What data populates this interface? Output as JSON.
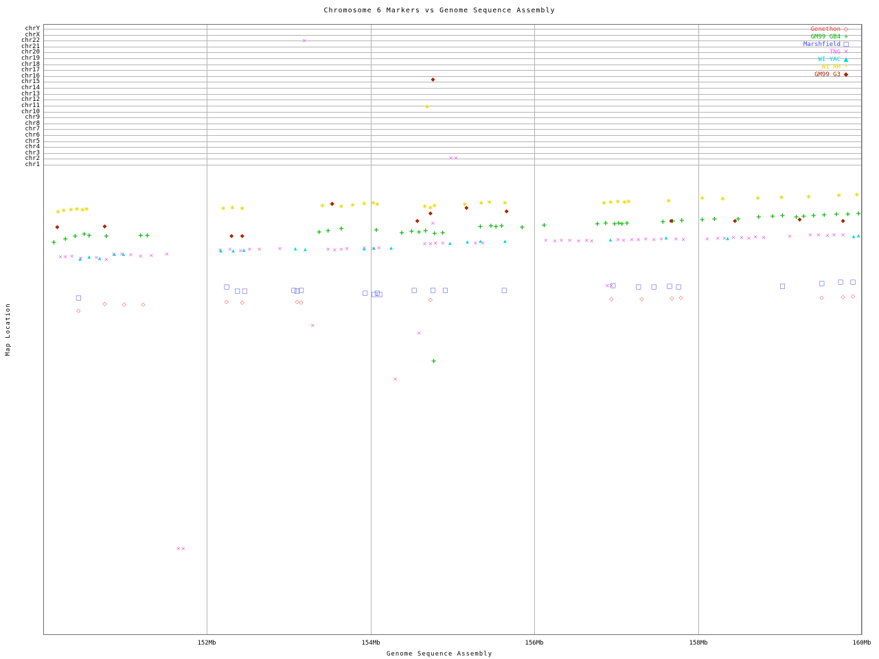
{
  "title": "Chromosome 6 Markers vs Genome Sequence Assembly",
  "x_axis": {
    "label": "Genome Sequence Assembly",
    "ticks": [
      {
        "label": "152Mb",
        "value": 152
      },
      {
        "label": "154Mb",
        "value": 154
      },
      {
        "label": "156Mb",
        "value": 156
      },
      {
        "label": "158Mb",
        "value": 158
      },
      {
        "label": "160Mb",
        "value": 160
      }
    ]
  },
  "y_axis": {
    "label": "Map Location",
    "chromosome_rows": [
      "chrY",
      "chrX",
      "chr22",
      "chr21",
      "chr20",
      "chr19",
      "chr18",
      "chr17",
      "chr16",
      "chr15",
      "chr14",
      "chr13",
      "chr12",
      "chr11",
      "chr10",
      "chr9",
      "chr8",
      "chr7",
      "chr6",
      "chr5",
      "chr4",
      "chr3",
      "chr2",
      "chr1"
    ]
  },
  "chart_data": {
    "type": "scatter",
    "title": "Chromosome 6 Markers vs Genome Sequence Assembly",
    "xlabel": "Genome Sequence Assembly",
    "ylabel": "Map Location",
    "x_units": "Mb",
    "x_range": [
      150,
      160
    ],
    "grid": true,
    "legend_position": "top-right",
    "y_axis_note": "Upper band rows are chromosome lanes chrY (top) to chr1 (bottom); lower region is map location along chr6 with no numeric scale printed. y values below are vertical screen positions (px).",
    "series": [
      {
        "name": "Genethon",
        "color": "#ff3333",
        "marker": "diamond-open",
        "points": [
          [
            150.75,
            443
          ],
          [
            150.99,
            444
          ],
          [
            151.22,
            444
          ],
          [
            150.43,
            453
          ],
          [
            152.24,
            440
          ],
          [
            152.43,
            441
          ],
          [
            153.1,
            440
          ],
          [
            153.15,
            441
          ],
          [
            154.73,
            437
          ],
          [
            156.94,
            436
          ],
          [
            157.31,
            436
          ],
          [
            157.68,
            435
          ],
          [
            157.79,
            434
          ],
          [
            159.51,
            434
          ],
          [
            159.77,
            433
          ],
          [
            159.89,
            432
          ]
        ]
      },
      {
        "name": "GM99 GB4",
        "color": "#00b400",
        "marker": "plus",
        "points": [
          [
            150.13,
            354
          ],
          [
            150.27,
            349
          ],
          [
            150.39,
            345
          ],
          [
            150.5,
            342
          ],
          [
            150.56,
            344
          ],
          [
            150.77,
            345
          ],
          [
            151.19,
            344
          ],
          [
            151.27,
            344
          ],
          [
            153.37,
            339
          ],
          [
            153.48,
            337
          ],
          [
            153.64,
            334
          ],
          [
            154.07,
            336
          ],
          [
            154.38,
            340
          ],
          [
            154.5,
            338
          ],
          [
            154.59,
            339
          ],
          [
            154.67,
            337
          ],
          [
            154.78,
            341
          ],
          [
            154.88,
            340
          ],
          [
            155.34,
            331
          ],
          [
            155.47,
            330
          ],
          [
            155.53,
            331
          ],
          [
            155.6,
            330
          ],
          [
            155.85,
            332
          ],
          [
            156.12,
            329
          ],
          [
            156.77,
            327
          ],
          [
            156.87,
            326
          ],
          [
            156.98,
            327
          ],
          [
            157.03,
            326
          ],
          [
            157.07,
            327
          ],
          [
            157.13,
            326
          ],
          [
            157.57,
            324
          ],
          [
            157.69,
            323
          ],
          [
            157.8,
            322
          ],
          [
            158.05,
            321
          ],
          [
            158.2,
            320
          ],
          [
            158.49,
            320
          ],
          [
            158.74,
            317
          ],
          [
            158.91,
            316
          ],
          [
            159.03,
            315
          ],
          [
            159.2,
            317
          ],
          [
            159.29,
            316
          ],
          [
            159.41,
            315
          ],
          [
            159.54,
            314
          ],
          [
            159.69,
            313
          ],
          [
            159.83,
            313
          ],
          [
            159.96,
            312
          ],
          [
            154.77,
            527
          ]
        ]
      },
      {
        "name": "Marshfield",
        "color": "#3f3fff",
        "marker": "square-open",
        "points": [
          [
            150.43,
            435
          ],
          [
            152.24,
            419
          ],
          [
            152.37,
            425
          ],
          [
            152.46,
            425
          ],
          [
            153.06,
            424
          ],
          [
            153.1,
            425
          ],
          [
            153.15,
            424
          ],
          [
            153.93,
            428
          ],
          [
            154.04,
            430
          ],
          [
            154.08,
            428
          ],
          [
            154.11,
            430
          ],
          [
            154.53,
            424
          ],
          [
            154.76,
            424
          ],
          [
            154.91,
            424
          ],
          [
            155.63,
            424
          ],
          [
            156.96,
            417
          ],
          [
            157.27,
            419
          ],
          [
            157.46,
            419
          ],
          [
            157.65,
            418
          ],
          [
            157.76,
            419
          ],
          [
            159.03,
            418
          ],
          [
            159.51,
            414
          ],
          [
            159.74,
            412
          ],
          [
            159.89,
            412
          ]
        ]
      },
      {
        "name": "TNG",
        "color": "#ee66ee",
        "marker": "x",
        "points": [
          [
            150.21,
            375
          ],
          [
            150.27,
            375
          ],
          [
            150.35,
            374
          ],
          [
            150.46,
            377
          ],
          [
            150.65,
            376
          ],
          [
            150.77,
            379
          ],
          [
            150.86,
            371
          ],
          [
            150.96,
            371
          ],
          [
            151.07,
            372
          ],
          [
            151.19,
            374
          ],
          [
            151.32,
            373
          ],
          [
            151.51,
            371
          ],
          [
            152.16,
            365
          ],
          [
            152.28,
            364
          ],
          [
            152.41,
            366
          ],
          [
            152.52,
            364
          ],
          [
            152.64,
            364
          ],
          [
            152.89,
            363
          ],
          [
            153.48,
            364
          ],
          [
            153.56,
            365
          ],
          [
            153.64,
            364
          ],
          [
            153.71,
            363
          ],
          [
            153.92,
            362
          ],
          [
            154.03,
            363
          ],
          [
            154.1,
            362
          ],
          [
            154.66,
            356
          ],
          [
            154.73,
            356
          ],
          [
            154.79,
            355
          ],
          [
            154.88,
            355
          ],
          [
            154.76,
            326
          ],
          [
            155.28,
            355
          ],
          [
            155.37,
            355
          ],
          [
            156.14,
            351
          ],
          [
            156.25,
            352
          ],
          [
            156.33,
            351
          ],
          [
            156.43,
            351
          ],
          [
            156.54,
            352
          ],
          [
            156.64,
            351
          ],
          [
            156.7,
            352
          ],
          [
            157.02,
            350
          ],
          [
            157.09,
            351
          ],
          [
            157.19,
            350
          ],
          [
            157.27,
            350
          ],
          [
            157.36,
            349
          ],
          [
            157.46,
            350
          ],
          [
            157.55,
            349
          ],
          [
            157.73,
            349
          ],
          [
            157.82,
            350
          ],
          [
            158.11,
            349
          ],
          [
            158.24,
            348
          ],
          [
            158.32,
            348
          ],
          [
            158.43,
            347
          ],
          [
            158.53,
            347
          ],
          [
            158.62,
            348
          ],
          [
            158.7,
            346
          ],
          [
            158.8,
            347
          ],
          [
            159.12,
            345
          ],
          [
            159.37,
            343
          ],
          [
            159.47,
            343
          ],
          [
            159.58,
            344
          ],
          [
            159.66,
            343
          ],
          [
            159.77,
            343
          ],
          [
            156.89,
            417
          ],
          [
            156.94,
            417
          ],
          [
            153.19,
            60
          ],
          [
            154.98,
            231
          ],
          [
            155.04,
            231
          ],
          [
            153.29,
            475
          ],
          [
            154.59,
            486
          ],
          [
            154.3,
            553
          ],
          [
            151.65,
            800
          ],
          [
            151.71,
            800
          ]
        ]
      },
      {
        "name": "WI YAC",
        "color": "#00d8d8",
        "marker": "triangle-filled",
        "points": [
          [
            150.45,
            378
          ],
          [
            150.56,
            375
          ],
          [
            150.69,
            377
          ],
          [
            150.87,
            371
          ],
          [
            150.98,
            371
          ],
          [
            152.17,
            366
          ],
          [
            152.32,
            366
          ],
          [
            152.45,
            365
          ],
          [
            153.08,
            363
          ],
          [
            153.2,
            364
          ],
          [
            153.92,
            363
          ],
          [
            154.04,
            362
          ],
          [
            154.25,
            362
          ],
          [
            154.97,
            355
          ],
          [
            155.18,
            353
          ],
          [
            155.34,
            352
          ],
          [
            155.64,
            352
          ],
          [
            156.93,
            350
          ],
          [
            157.61,
            347
          ],
          [
            158.36,
            348
          ],
          [
            159.9,
            345
          ],
          [
            159.96,
            344
          ]
        ]
      },
      {
        "name": "WI RH",
        "color": "#e8d800",
        "marker": "star",
        "points": [
          [
            150.18,
            308
          ],
          [
            150.25,
            306
          ],
          [
            150.34,
            305
          ],
          [
            150.41,
            304
          ],
          [
            150.48,
            305
          ],
          [
            150.53,
            304
          ],
          [
            152.2,
            303
          ],
          [
            152.31,
            302
          ],
          [
            152.43,
            303
          ],
          [
            153.41,
            299
          ],
          [
            153.52,
            297
          ],
          [
            153.64,
            300
          ],
          [
            153.78,
            298
          ],
          [
            153.92,
            296
          ],
          [
            154.03,
            295
          ],
          [
            154.08,
            297
          ],
          [
            154.66,
            300
          ],
          [
            154.73,
            302
          ],
          [
            154.78,
            299
          ],
          [
            155.15,
            297
          ],
          [
            155.35,
            295
          ],
          [
            155.45,
            294
          ],
          [
            155.64,
            295
          ],
          [
            156.85,
            295
          ],
          [
            156.93,
            294
          ],
          [
            157.02,
            293
          ],
          [
            157.1,
            294
          ],
          [
            157.15,
            293
          ],
          [
            157.64,
            292
          ],
          [
            158.05,
            288
          ],
          [
            158.3,
            289
          ],
          [
            158.73,
            288
          ],
          [
            159.02,
            287
          ],
          [
            159.35,
            286
          ],
          [
            159.72,
            284
          ],
          [
            159.94,
            283
          ],
          [
            154.69,
            155
          ]
        ]
      },
      {
        "name": "GM99 G3",
        "color": "#aa2200",
        "marker": "diamond-filled",
        "points": [
          [
            150.17,
            331
          ],
          [
            150.75,
            330
          ],
          [
            152.3,
            344
          ],
          [
            152.43,
            344
          ],
          [
            153.53,
            297
          ],
          [
            154.57,
            322
          ],
          [
            154.73,
            311
          ],
          [
            155.17,
            303
          ],
          [
            155.66,
            308
          ],
          [
            157.67,
            322
          ],
          [
            158.45,
            322
          ],
          [
            159.24,
            320
          ],
          [
            159.77,
            322
          ],
          [
            154.76,
            116
          ]
        ]
      }
    ]
  }
}
